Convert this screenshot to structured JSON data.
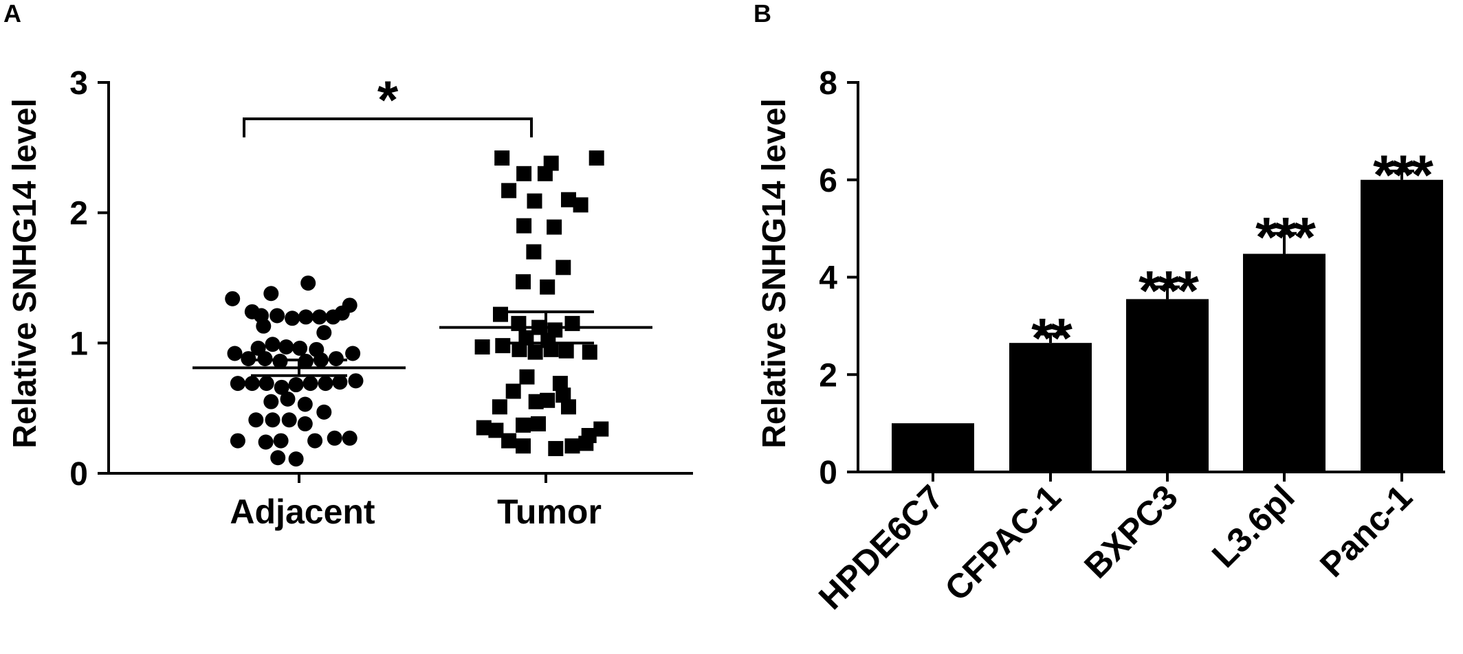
{
  "panel_a": {
    "label": "A",
    "chart_data": {
      "type": "scatter",
      "ylabel": "Relative SNHG14 level",
      "ylim": [
        0,
        3
      ],
      "yticks": [
        "0",
        "1",
        "2",
        "3"
      ],
      "categories": [
        "Adjacent",
        "Tumor"
      ],
      "significance": "*",
      "series": [
        {
          "category": "Adjacent",
          "marker": "circle",
          "mean": 0.81,
          "sem_low": 0.75,
          "sem_high": 0.87,
          "points": [
            {
              "offset": -0.88,
              "y": 1.34
            },
            {
              "offset": -0.37,
              "y": 1.38
            },
            {
              "offset": 0.12,
              "y": 1.46
            },
            {
              "offset": 0.67,
              "y": 1.29
            },
            {
              "offset": -0.62,
              "y": 1.24
            },
            {
              "offset": -0.5,
              "y": 1.21
            },
            {
              "offset": -0.29,
              "y": 1.21
            },
            {
              "offset": -0.09,
              "y": 1.19
            },
            {
              "offset": 0.09,
              "y": 1.2
            },
            {
              "offset": 0.27,
              "y": 1.2
            },
            {
              "offset": 0.45,
              "y": 1.2
            },
            {
              "offset": 0.57,
              "y": 1.23
            },
            {
              "offset": -0.47,
              "y": 1.13
            },
            {
              "offset": 0.33,
              "y": 1.08
            },
            {
              "offset": -0.54,
              "y": 0.96
            },
            {
              "offset": -0.35,
              "y": 0.99
            },
            {
              "offset": -0.17,
              "y": 0.97
            },
            {
              "offset": 0.01,
              "y": 0.96
            },
            {
              "offset": 0.23,
              "y": 0.95
            },
            {
              "offset": -0.85,
              "y": 0.92
            },
            {
              "offset": -0.67,
              "y": 0.88
            },
            {
              "offset": -0.45,
              "y": 0.88
            },
            {
              "offset": -0.25,
              "y": 0.86
            },
            {
              "offset": 0.09,
              "y": 0.86
            },
            {
              "offset": 0.29,
              "y": 0.87
            },
            {
              "offset": 0.49,
              "y": 0.88
            },
            {
              "offset": 0.71,
              "y": 0.92
            },
            {
              "offset": -0.81,
              "y": 0.69
            },
            {
              "offset": -0.62,
              "y": 0.69
            },
            {
              "offset": -0.43,
              "y": 0.69
            },
            {
              "offset": -0.23,
              "y": 0.66
            },
            {
              "offset": -0.04,
              "y": 0.68
            },
            {
              "offset": 0.15,
              "y": 0.69
            },
            {
              "offset": 0.35,
              "y": 0.69
            },
            {
              "offset": 0.54,
              "y": 0.7
            },
            {
              "offset": 0.75,
              "y": 0.71
            },
            {
              "offset": -0.15,
              "y": 0.57
            },
            {
              "offset": -0.37,
              "y": 0.55
            },
            {
              "offset": 0.08,
              "y": 0.53
            },
            {
              "offset": -0.57,
              "y": 0.41
            },
            {
              "offset": -0.35,
              "y": 0.41
            },
            {
              "offset": -0.13,
              "y": 0.41
            },
            {
              "offset": 0.33,
              "y": 0.47
            },
            {
              "offset": 0.08,
              "y": 0.38
            },
            {
              "offset": -0.44,
              "y": 0.24
            },
            {
              "offset": -0.81,
              "y": 0.25
            },
            {
              "offset": -0.24,
              "y": 0.25
            },
            {
              "offset": 0.47,
              "y": 0.27
            },
            {
              "offset": 0.67,
              "y": 0.27
            },
            {
              "offset": -0.04,
              "y": 0.11
            },
            {
              "offset": -0.28,
              "y": 0.12
            },
            {
              "offset": 0.21,
              "y": 0.25
            }
          ]
        },
        {
          "category": "Tumor",
          "marker": "square",
          "mean": 1.12,
          "sem_low": 1.0,
          "sem_high": 1.24,
          "points": [
            {
              "offset": -0.58,
              "y": 2.42
            },
            {
              "offset": 0.07,
              "y": 2.38
            },
            {
              "offset": 0.67,
              "y": 2.42
            },
            {
              "offset": -0.29,
              "y": 2.3
            },
            {
              "offset": -0.01,
              "y": 2.3
            },
            {
              "offset": -0.49,
              "y": 2.17
            },
            {
              "offset": -0.15,
              "y": 2.09
            },
            {
              "offset": 0.3,
              "y": 2.1
            },
            {
              "offset": 0.46,
              "y": 2.06
            },
            {
              "offset": -0.29,
              "y": 1.9
            },
            {
              "offset": 0.11,
              "y": 1.89
            },
            {
              "offset": -0.16,
              "y": 1.7
            },
            {
              "offset": 0.23,
              "y": 1.58
            },
            {
              "offset": -0.3,
              "y": 1.47
            },
            {
              "offset": 0.02,
              "y": 1.43
            },
            {
              "offset": -0.6,
              "y": 1.22
            },
            {
              "offset": -0.36,
              "y": 1.15
            },
            {
              "offset": -0.09,
              "y": 1.12
            },
            {
              "offset": 0.12,
              "y": 1.1
            },
            {
              "offset": 0.35,
              "y": 1.15
            },
            {
              "offset": -0.26,
              "y": 1.04
            },
            {
              "offset": 0.03,
              "y": 1.02
            },
            {
              "offset": -0.84,
              "y": 0.97
            },
            {
              "offset": -0.57,
              "y": 0.98
            },
            {
              "offset": -0.35,
              "y": 0.95
            },
            {
              "offset": -0.14,
              "y": 0.93
            },
            {
              "offset": 0.07,
              "y": 0.95
            },
            {
              "offset": 0.27,
              "y": 0.94
            },
            {
              "offset": 0.58,
              "y": 0.93
            },
            {
              "offset": -0.25,
              "y": 0.74
            },
            {
              "offset": 0.19,
              "y": 0.69
            },
            {
              "offset": -0.43,
              "y": 0.63
            },
            {
              "offset": 0.23,
              "y": 0.6
            },
            {
              "offset": -0.13,
              "y": 0.55
            },
            {
              "offset": 0.02,
              "y": 0.56
            },
            {
              "offset": -0.61,
              "y": 0.51
            },
            {
              "offset": 0.3,
              "y": 0.51
            },
            {
              "offset": -0.3,
              "y": 0.37
            },
            {
              "offset": -0.1,
              "y": 0.38
            },
            {
              "offset": -0.82,
              "y": 0.35
            },
            {
              "offset": -0.66,
              "y": 0.33
            },
            {
              "offset": -0.49,
              "y": 0.25
            },
            {
              "offset": -0.3,
              "y": 0.21
            },
            {
              "offset": 0.13,
              "y": 0.19
            },
            {
              "offset": 0.35,
              "y": 0.21
            },
            {
              "offset": 0.57,
              "y": 0.29
            },
            {
              "offset": 0.73,
              "y": 0.34
            },
            {
              "offset": 0.53,
              "y": 0.23
            }
          ]
        }
      ]
    }
  },
  "panel_b": {
    "label": "B",
    "chart_data": {
      "type": "bar",
      "ylabel": "Relative SNHG14 level",
      "ylim": [
        0,
        8
      ],
      "yticks": [
        "0",
        "2",
        "4",
        "6",
        "8"
      ],
      "categories": [
        "HPDE6C7",
        "CFPAC-1",
        "BXPC3",
        "L3.6pl",
        "Panc-1"
      ],
      "values": [
        1.0,
        2.65,
        3.55,
        4.48,
        6.0
      ],
      "errors": [
        0.0,
        0.18,
        0.25,
        0.42,
        0.18
      ],
      "significance": [
        "",
        "**",
        "***",
        "***",
        "***"
      ]
    }
  },
  "colors": {
    "marks": "#000000",
    "background": "#ffffff"
  }
}
